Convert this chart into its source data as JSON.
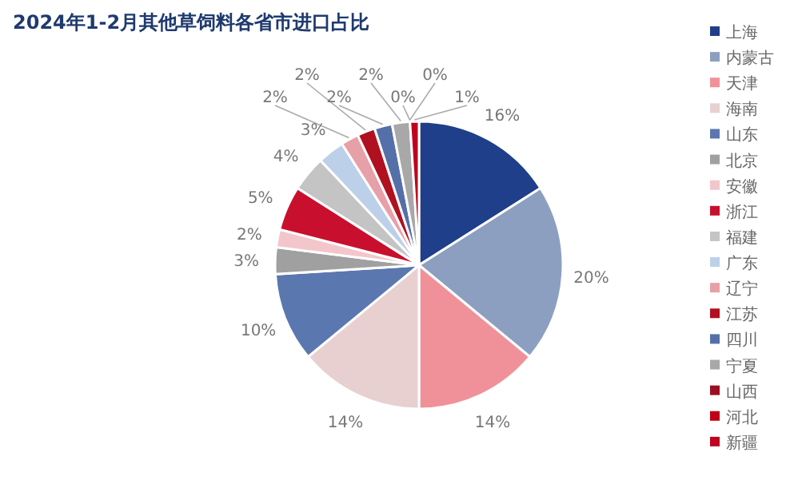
{
  "chart_data": {
    "type": "pie",
    "title": "2024年1-2月其他草饲料各省市进口占比",
    "categories": [
      "上海",
      "内蒙古",
      "天津",
      "海南",
      "山东",
      "北京",
      "安徽",
      "浙江",
      "福建",
      "广东",
      "辽宁",
      "江苏",
      "四川",
      "宁夏",
      "山西",
      "河北",
      "新疆"
    ],
    "values": [
      16,
      20,
      14,
      14,
      10,
      3,
      2,
      5,
      4,
      3,
      2,
      2,
      2,
      2,
      0,
      0,
      1
    ],
    "value_labels": [
      "16%",
      "20%",
      "14%",
      "14%",
      "10%",
      "3%",
      "2%",
      "5%",
      "4%",
      "3%",
      "2%",
      "2%",
      "2%",
      "2%",
      "0%",
      "0%",
      "1%"
    ],
    "colors": [
      "#1f3f8a",
      "#8c9fc0",
      "#f0919a",
      "#e8d0d0",
      "#5b77b0",
      "#a0a0a0",
      "#f3c6cc",
      "#c8102e",
      "#c4c4c4",
      "#bcd0ea",
      "#e8a0a8",
      "#b01020",
      "#5570a8",
      "#a8a8a8",
      "#9b1020",
      "#c00018",
      "#c00020"
    ],
    "legend": "right"
  }
}
